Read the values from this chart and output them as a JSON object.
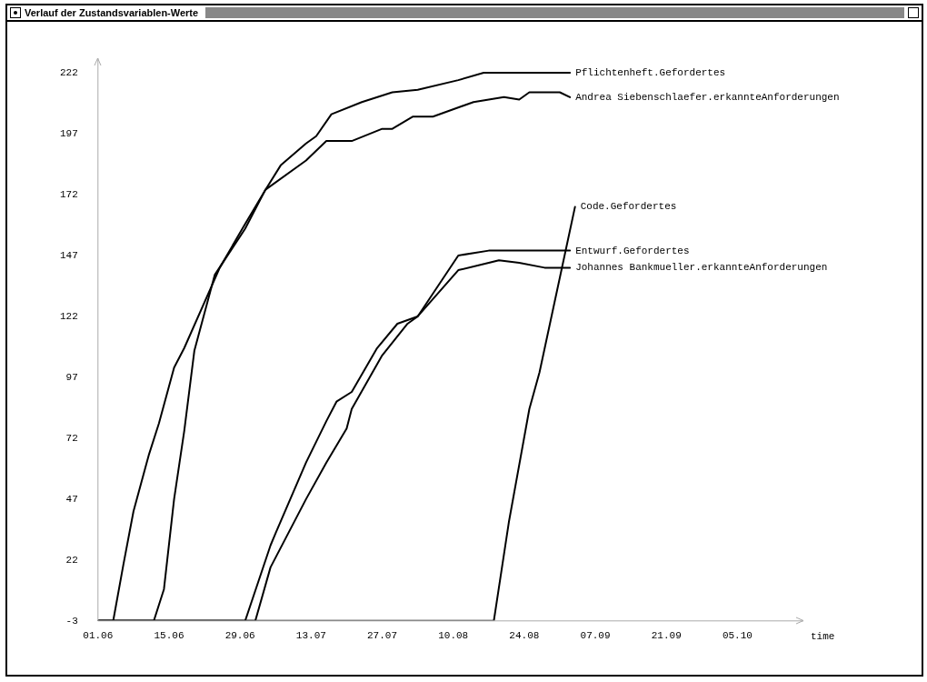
{
  "chart_data": {
    "type": "line",
    "title": "Verlauf der Zustandsvariablen-Werte",
    "xlabel": "time",
    "xlim": [
      "--06-01",
      "--10-18"
    ],
    "xticks": [
      {
        "value": "--06-01",
        "label": "01.06"
      },
      {
        "value": "--06-15",
        "label": "15.06"
      },
      {
        "value": "--06-29",
        "label": "29.06"
      },
      {
        "value": "--07-13",
        "label": "13.07"
      },
      {
        "value": "--07-27",
        "label": "27.07"
      },
      {
        "value": "--08-10",
        "label": "10.08"
      },
      {
        "value": "--08-24",
        "label": "24.08"
      },
      {
        "value": "--09-07",
        "label": "07.09"
      },
      {
        "value": "--09-21",
        "label": "21.09"
      },
      {
        "value": "--10-05",
        "label": "05.10"
      }
    ],
    "ylim": [
      -3,
      228
    ],
    "yticks": [
      -3,
      22,
      47,
      72,
      97,
      122,
      147,
      172,
      197,
      222
    ],
    "grid": false,
    "legend": false,
    "marker": "none",
    "line_style": "solid",
    "series": [
      {
        "name": "Pflichtenheft.Gefordertes",
        "color": "#000000",
        "x": [
          "--06-01",
          "--06-04",
          "--06-06",
          "--06-08",
          "--06-11",
          "--06-13",
          "--06-16",
          "--06-18",
          "--06-25",
          "--06-30",
          "--07-04",
          "--07-07",
          "--07-12",
          "--07-14",
          "--07-17",
          "--07-23",
          "--07-29",
          "--08-03",
          "--08-11",
          "--08-16",
          "--09-02"
        ],
        "values": [
          -3,
          -3,
          20,
          42,
          65,
          78,
          101,
          109,
          142,
          160,
          174,
          184,
          193,
          196,
          205,
          210,
          214,
          215,
          219,
          222,
          222
        ]
      },
      {
        "name": "Andrea Siebenschlaefer.erkannteAnforderungen",
        "color": "#000000",
        "x": [
          "--06-01",
          "--06-12",
          "--06-14",
          "--06-16",
          "--06-18",
          "--06-20",
          "--06-24",
          "--06-30",
          "--07-04",
          "--07-12",
          "--07-16",
          "--07-21",
          "--07-27",
          "--07-29",
          "--08-02",
          "--08-06",
          "--08-14",
          "--08-20",
          "--08-23",
          "--08-25",
          "--08-31",
          "--09-02"
        ],
        "values": [
          -3,
          -3,
          10,
          47,
          75,
          108,
          139,
          158,
          174,
          186,
          194,
          194,
          199,
          199,
          204,
          204,
          210,
          212,
          211,
          214,
          214,
          212
        ]
      },
      {
        "name": "Code.Gefordertes",
        "color": "#000000",
        "x": [
          "--06-01",
          "--08-18",
          "--08-21",
          "--08-25",
          "--08-27",
          "--09-03"
        ],
        "values": [
          -3,
          -3,
          38,
          84,
          99,
          167
        ]
      },
      {
        "name": "Entwurf.Gefordertes",
        "color": "#000000",
        "x": [
          "--06-01",
          "--06-30",
          "--07-05",
          "--07-06",
          "--07-12",
          "--07-16",
          "--07-18",
          "--07-21",
          "--07-26",
          "--07-30",
          "--08-03",
          "--08-11",
          "--08-17",
          "--09-02"
        ],
        "values": [
          -3,
          -3,
          28,
          33,
          62,
          79,
          87,
          91,
          109,
          119,
          122,
          147,
          149,
          149
        ]
      },
      {
        "name": "Johannes Bankmueller.erkannteAnforderungen",
        "color": "#000000",
        "x": [
          "--06-01",
          "--07-02",
          "--07-05",
          "--07-12",
          "--07-16",
          "--07-20",
          "--07-21",
          "--07-27",
          "--08-01",
          "--08-03",
          "--08-11",
          "--08-17",
          "--08-19",
          "--08-23",
          "--08-28",
          "--09-02"
        ],
        "values": [
          -3,
          -3,
          19,
          47,
          62,
          76,
          84,
          106,
          119,
          122,
          141,
          144,
          145,
          144,
          142,
          142
        ]
      }
    ]
  }
}
